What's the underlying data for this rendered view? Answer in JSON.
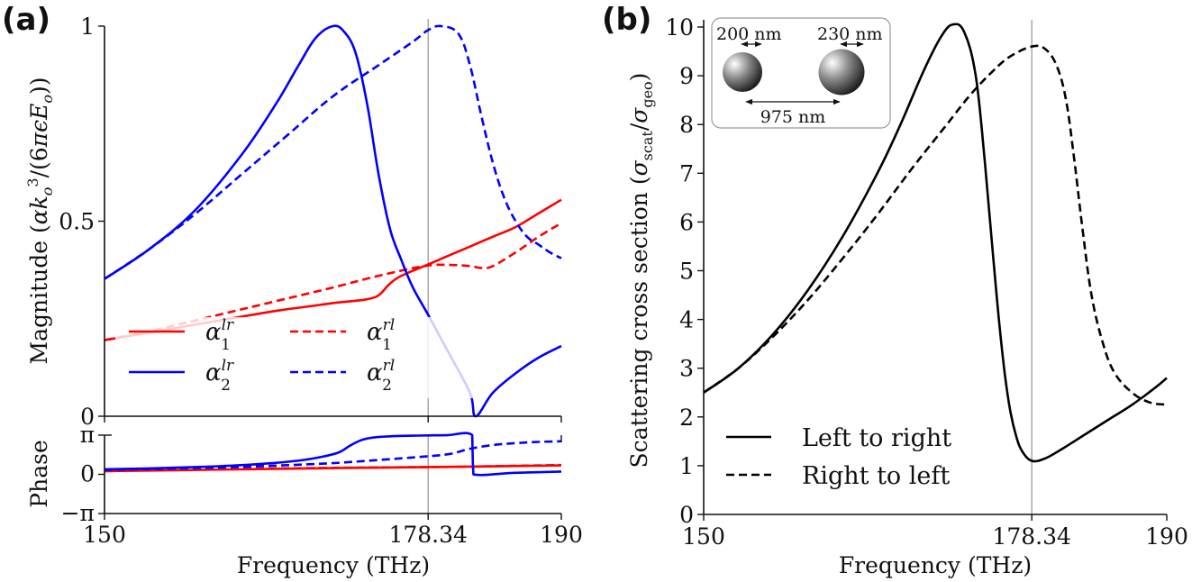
{
  "chart_data": [
    {
      "panel_label": "(a)",
      "type": "line",
      "subplots": [
        {
          "name": "magnitude",
          "ylabel": "Magnitude (αk_o^3/(6πεE_o))",
          "ylim": [
            0,
            1
          ],
          "yticks": [
            {
              "v": 0,
              "label": "0"
            },
            {
              "v": 0.5,
              "label": "0.5"
            },
            {
              "v": 1,
              "label": "1"
            }
          ],
          "legend": {
            "placement": "lower-left",
            "entries": [
              {
                "label": "α₁ˡʳ",
                "base": "α",
                "sub": "1",
                "sup": "lr",
                "series": "a1_lr"
              },
              {
                "label": "α₁ʳˡ",
                "base": "α",
                "sub": "1",
                "sup": "rl",
                "series": "a1_rl"
              },
              {
                "label": "α₂ˡʳ",
                "base": "α",
                "sub": "2",
                "sup": "lr",
                "series": "a2_lr"
              },
              {
                "label": "α₂ʳˡ",
                "base": "α",
                "sub": "2",
                "sup": "rl",
                "series": "a2_rl"
              }
            ]
          },
          "series": [
            {
              "id": "a1_lr",
              "name": "alpha_1^lr",
              "color": "#ff0000",
              "dash": "solid",
              "x": [
                150,
                155,
                160,
                165,
                168,
                170,
                172,
                173,
                174,
                175,
                176,
                178,
                180,
                182,
                184,
                186,
                188,
                190
              ],
              "y": [
                0.195,
                0.22,
                0.245,
                0.27,
                0.282,
                0.29,
                0.296,
                0.3,
                0.31,
                0.34,
                0.36,
                0.385,
                0.41,
                0.435,
                0.46,
                0.485,
                0.52,
                0.555
              ]
            },
            {
              "id": "a1_rl",
              "name": "alpha_1^rl",
              "color": "#ff0000",
              "dash": "dashed",
              "x": [
                150,
                155,
                160,
                165,
                170,
                174,
                178,
                180,
                182,
                183,
                184,
                186,
                188,
                190
              ],
              "y": [
                0.195,
                0.225,
                0.26,
                0.295,
                0.33,
                0.36,
                0.385,
                0.388,
                0.385,
                0.38,
                0.385,
                0.42,
                0.46,
                0.495
              ]
            },
            {
              "id": "a2_lr",
              "name": "alpha_2^lr",
              "color": "#0000ff",
              "dash": "solid",
              "x": [
                150,
                154,
                158,
                162,
                165,
                167,
                168.5,
                170,
                171,
                172,
                173,
                174,
                175,
                176,
                177,
                178.34,
                180,
                182,
                182.5,
                184,
                186,
                188,
                190
              ],
              "y": [
                0.352,
                0.43,
                0.53,
                0.67,
                0.8,
                0.9,
                0.97,
                1.0,
                0.985,
                0.93,
                0.8,
                0.62,
                0.48,
                0.4,
                0.33,
                0.26,
                0.17,
                0.06,
                0.0,
                0.06,
                0.11,
                0.15,
                0.18
              ]
            },
            {
              "id": "a2_rl",
              "name": "alpha_2^rl",
              "color": "#0000ff",
              "dash": "dashed",
              "x": [
                150,
                154,
                158,
                162,
                166,
                170,
                174,
                177,
                178.34,
                179.5,
                181,
                182,
                183,
                184,
                185,
                186,
                187,
                188,
                189,
                190
              ],
              "y": [
                0.352,
                0.43,
                0.52,
                0.62,
                0.72,
                0.82,
                0.9,
                0.96,
                0.99,
                1.0,
                0.98,
                0.9,
                0.77,
                0.65,
                0.56,
                0.5,
                0.46,
                0.44,
                0.42,
                0.405
              ]
            }
          ]
        },
        {
          "name": "phase",
          "ylabel": "Phase",
          "ylim": [
            -3.14159,
            3.14159
          ],
          "yticks": [
            {
              "v": -3.14159,
              "label": "−π"
            },
            {
              "v": 0,
              "label": "0"
            },
            {
              "v": 3.14159,
              "label": "π"
            }
          ],
          "series": [
            {
              "id": "p1_lr",
              "color": "#ff0000",
              "dash": "solid",
              "x": [
                150,
                160,
                170,
                178.34,
                182,
                190
              ],
              "y": [
                0.25,
                0.38,
                0.5,
                0.58,
                0.62,
                0.72
              ]
            },
            {
              "id": "p1_rl",
              "color": "#ff0000",
              "dash": "dashed",
              "x": [
                150,
                160,
                170,
                178.34,
                182,
                190
              ],
              "y": [
                0.3,
                0.42,
                0.52,
                0.58,
                0.62,
                0.75
              ]
            },
            {
              "id": "p2_lr",
              "color": "#0000ff",
              "dash": "solid",
              "x": [
                150,
                155,
                160,
                164,
                167,
                169,
                170.5,
                171.5,
                172.5,
                173.5,
                175,
                177,
                178.34,
                180,
                182.2,
                182.25,
                182.3,
                186,
                190
              ],
              "y": [
                0.4,
                0.5,
                0.65,
                0.85,
                1.1,
                1.4,
                1.75,
                2.3,
                2.75,
                2.95,
                3.05,
                3.1,
                3.12,
                3.14,
                3.14,
                1.0,
                0.0,
                0.12,
                0.22
              ]
            },
            {
              "id": "p2_rl",
              "color": "#0000ff",
              "dash": "dashed",
              "x": [
                150,
                155,
                160,
                165,
                170,
                174,
                178.34,
                180,
                181,
                182,
                184,
                186,
                188,
                190
              ],
              "y": [
                0.35,
                0.45,
                0.55,
                0.7,
                0.9,
                1.15,
                1.45,
                1.6,
                1.8,
                2.05,
                2.35,
                2.5,
                2.6,
                2.65
              ]
            }
          ]
        }
      ],
      "xlabel": "Frequency (THz)",
      "xlim": [
        150,
        190
      ],
      "xticks": [
        {
          "v": 150,
          "label": "150"
        },
        {
          "v": 178.34,
          "label": "178.34"
        },
        {
          "v": 190,
          "label": "190"
        }
      ],
      "vline": 178.34
    },
    {
      "panel_label": "(b)",
      "type": "line",
      "xlabel": "Frequency (THz)",
      "ylabel": "Scattering cross section (σ_scat/σ_geo)",
      "xlim": [
        150,
        190
      ],
      "ylim": [
        0,
        10.2
      ],
      "xticks": [
        {
          "v": 150,
          "label": "150"
        },
        {
          "v": 178.34,
          "label": "178.34"
        },
        {
          "v": 190,
          "label": "190"
        }
      ],
      "yticks": [
        0,
        1,
        2,
        3,
        4,
        5,
        6,
        7,
        8,
        9,
        10
      ],
      "vline": 178.34,
      "legend": {
        "placement": "lower-left",
        "entries": [
          {
            "label": "Left to right",
            "series": "ltr"
          },
          {
            "label": "Right to left",
            "series": "rtl"
          }
        ]
      },
      "series": [
        {
          "id": "ltr",
          "name": "Left to right",
          "color": "#000000",
          "dash": "solid",
          "x": [
            150,
            153,
            156,
            159,
            162,
            165,
            167,
            169,
            170.5,
            171.5,
            172.5,
            173.5,
            174.3,
            175,
            175.5,
            176,
            176.5,
            177,
            177.5,
            178.34,
            179.5,
            181,
            183,
            185,
            187,
            189,
            190
          ],
          "y": [
            2.5,
            3.0,
            3.7,
            4.6,
            5.7,
            7.0,
            8.0,
            9.1,
            9.8,
            10.05,
            9.9,
            9.0,
            7.2,
            5.3,
            4.0,
            2.9,
            2.1,
            1.6,
            1.3,
            1.1,
            1.15,
            1.35,
            1.65,
            1.95,
            2.25,
            2.6,
            2.8
          ]
        },
        {
          "id": "rtl",
          "name": "Right to left",
          "color": "#000000",
          "dash": "dashed",
          "x": [
            150,
            153,
            156,
            159,
            162,
            165,
            168,
            171,
            173,
            175,
            176.5,
            178.34,
            179.5,
            180.5,
            181.3,
            182,
            182.7,
            183.5,
            184.5,
            185.5,
            187,
            188.5,
            190
          ],
          "y": [
            2.5,
            3.0,
            3.65,
            4.4,
            5.25,
            6.15,
            7.1,
            8.0,
            8.6,
            9.1,
            9.4,
            9.6,
            9.55,
            9.2,
            8.5,
            7.3,
            5.9,
            4.5,
            3.5,
            2.9,
            2.5,
            2.3,
            2.25
          ]
        }
      ],
      "inset": {
        "left_particle_diameter": "200 nm",
        "right_particle_diameter": "230 nm",
        "separation": "975 nm"
      }
    }
  ]
}
